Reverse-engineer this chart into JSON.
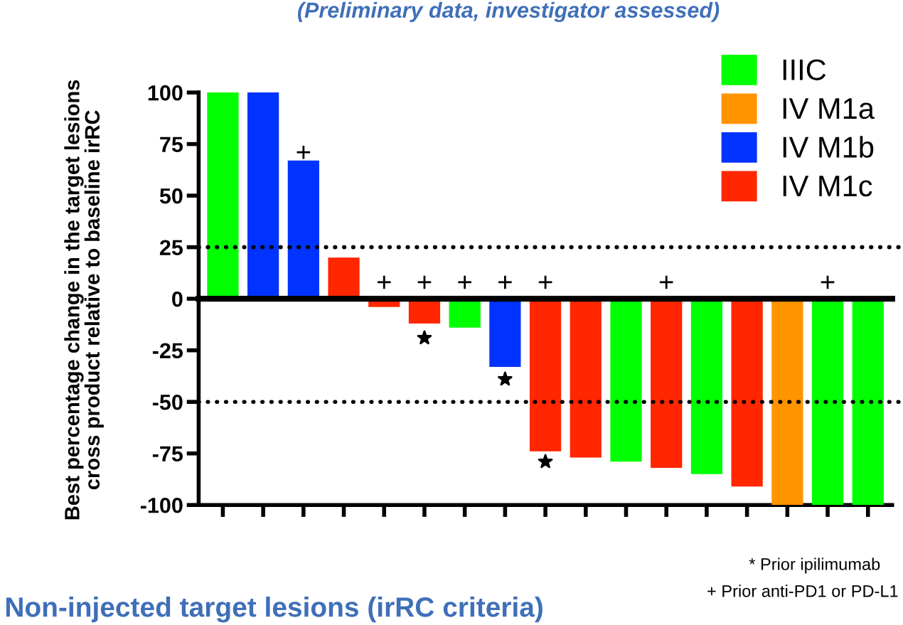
{
  "chart_data": {
    "type": "bar",
    "subtitle": "(Preliminary data, investigator assessed)",
    "ylabel": "Best percentage change in the target lesions\ncross product relative to baseline irRC",
    "categories": [
      null,
      null,
      null,
      null,
      null,
      null,
      null,
      null,
      null,
      null,
      null,
      null,
      null,
      null,
      null,
      null,
      null
    ],
    "series": [
      {
        "name": "IIIC",
        "color": "#00ff00",
        "values": [
          100,
          null,
          null,
          null,
          null,
          null,
          -14,
          null,
          null,
          null,
          -79,
          null,
          -85,
          null,
          null,
          -100,
          -100
        ]
      },
      {
        "name": "IV M1a",
        "color": "#ff9400",
        "values": [
          null,
          null,
          null,
          null,
          null,
          null,
          null,
          null,
          null,
          null,
          null,
          null,
          null,
          null,
          -100,
          null,
          null
        ]
      },
      {
        "name": "IV M1b",
        "color": "#0033ff",
        "values": [
          null,
          100,
          67,
          null,
          null,
          null,
          null,
          -33,
          null,
          null,
          null,
          null,
          null,
          null,
          null,
          null,
          null
        ]
      },
      {
        "name": "IV M1c",
        "color": "#ff2600",
        "values": [
          null,
          null,
          null,
          20,
          -4,
          -12,
          null,
          null,
          -74,
          -77,
          null,
          -82,
          null,
          -91,
          null,
          null,
          null
        ]
      },
      {
        "type": "scatter",
        "marker": "cross",
        "color": "#000000",
        "values": [
          null,
          null,
          71,
          null,
          8,
          8,
          8,
          8,
          8,
          null,
          null,
          8,
          null,
          null,
          null,
          8,
          null
        ]
      },
      {
        "type": "scatter",
        "marker": "star",
        "color": "#000000",
        "values": [
          null,
          null,
          null,
          null,
          null,
          -19,
          null,
          -39,
          -79,
          null,
          null,
          null,
          null,
          null,
          null,
          null,
          null
        ]
      }
    ],
    "ylim": [
      -100,
      100
    ],
    "yticks": [
      -100,
      -75,
      -50,
      -25,
      0,
      25,
      50,
      75,
      100
    ],
    "ref_lines": [
      {
        "axis": "y",
        "value": 25,
        "line_style": "dotted",
        "color": "#000000"
      },
      {
        "axis": "y",
        "value": -50,
        "line_style": "dotted",
        "color": "#000000"
      },
      {
        "axis": "y",
        "value": 0,
        "line_style": "solid",
        "color": "#000000"
      }
    ],
    "annotations": [
      "* Prior ipilimumab",
      "+ Prior anti-PD1 or PD-L1",
      "Non-injected target lesions (irRC criteria)"
    ],
    "legend": "top right",
    "tick_labels": "y",
    "grid": false
  }
}
